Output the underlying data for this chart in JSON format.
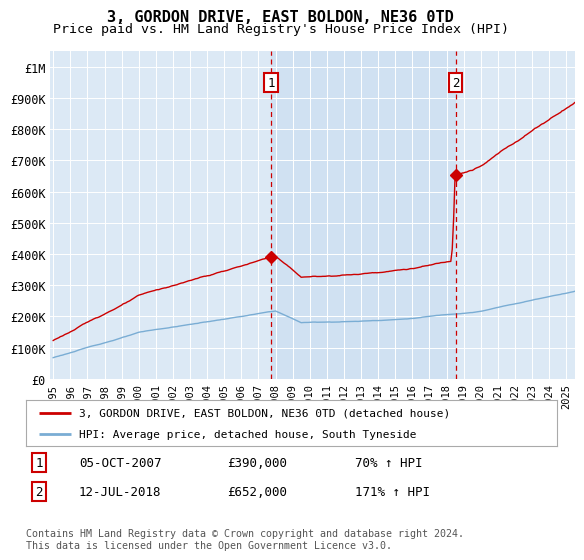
{
  "title": "3, GORDON DRIVE, EAST BOLDON, NE36 0TD",
  "subtitle": "Price paid vs. HM Land Registry's House Price Index (HPI)",
  "title_fontsize": 11,
  "subtitle_fontsize": 9.5,
  "ylabel_ticks": [
    "£0",
    "£100K",
    "£200K",
    "£300K",
    "£400K",
    "£500K",
    "£600K",
    "£700K",
    "£800K",
    "£900K",
    "£1M"
  ],
  "ytick_values": [
    0,
    100000,
    200000,
    300000,
    400000,
    500000,
    600000,
    700000,
    800000,
    900000,
    1000000
  ],
  "ylim": [
    0,
    1050000
  ],
  "plot_bg_color": "#dce9f5",
  "shade_color": "#c8dcf0",
  "outer_bg_color": "#ffffff",
  "red_line_color": "#cc0000",
  "blue_line_color": "#7aadd4",
  "marker1_date_x": 2007.75,
  "marker1_label": "1",
  "marker1_y": 390000,
  "marker1_date_str": "05-OCT-2007",
  "marker1_price_str": "£390,000",
  "marker1_hpi_str": "70% ↑ HPI",
  "marker2_date_x": 2018.53,
  "marker2_label": "2",
  "marker2_y": 652000,
  "marker2_date_str": "12-JUL-2018",
  "marker2_price_str": "£652,000",
  "marker2_hpi_str": "171% ↑ HPI",
  "legend_line1": "3, GORDON DRIVE, EAST BOLDON, NE36 0TD (detached house)",
  "legend_line2": "HPI: Average price, detached house, South Tyneside",
  "footer": "Contains HM Land Registry data © Crown copyright and database right 2024.\nThis data is licensed under the Open Government Licence v3.0.",
  "xtick_years": [
    1995,
    1996,
    1997,
    1998,
    1999,
    2000,
    2001,
    2002,
    2003,
    2004,
    2005,
    2006,
    2007,
    2008,
    2009,
    2010,
    2011,
    2012,
    2013,
    2014,
    2015,
    2016,
    2017,
    2018,
    2019,
    2020,
    2021,
    2022,
    2023,
    2024,
    2025
  ]
}
